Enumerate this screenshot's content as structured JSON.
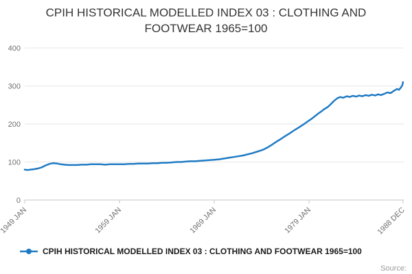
{
  "title": "CPIH HISTORICAL MODELLED INDEX 03 : CLOTHING AND FOOTWEAR 1965=100",
  "legend": {
    "label": "CPIH HISTORICAL MODELLED INDEX 03 : CLOTHING AND FOOTWEAR 1965=100"
  },
  "source_label": "Source:",
  "colors": {
    "line": "#1e7ac4",
    "grid": "#e6e6e6",
    "axis": "#c6c6c6",
    "tick_text": "#6e6e6e"
  },
  "chart_data": {
    "type": "line",
    "title": "CPIH HISTORICAL MODELLED INDEX 03 : CLOTHING AND FOOTWEAR 1965=100",
    "xlabel": "",
    "ylabel": "",
    "x_range": [
      1949,
      1989
    ],
    "y_range": [
      0,
      400
    ],
    "y_ticks": [
      0,
      100,
      200,
      300,
      400
    ],
    "x_tick_labels": [
      "1949 JAN",
      "1959 JAN",
      "1969 JAN",
      "1979 JAN",
      "1988 DEC"
    ],
    "x_tick_positions": [
      1949,
      1959,
      1969,
      1979,
      1988.917
    ],
    "grid": true,
    "legend_position": "bottom",
    "series": [
      {
        "name": "CPIH HISTORICAL MODELLED INDEX 03 : CLOTHING AND FOOTWEAR 1965=100",
        "color": "#1e7ac4",
        "points": [
          [
            1949.0,
            80
          ],
          [
            1949.3,
            79
          ],
          [
            1949.6,
            80
          ],
          [
            1950.0,
            81
          ],
          [
            1950.4,
            83
          ],
          [
            1950.8,
            86
          ],
          [
            1951.2,
            91
          ],
          [
            1951.6,
            95
          ],
          [
            1952.0,
            97
          ],
          [
            1952.4,
            96
          ],
          [
            1952.8,
            94
          ],
          [
            1953.2,
            93
          ],
          [
            1953.6,
            92
          ],
          [
            1954.0,
            92
          ],
          [
            1954.5,
            92
          ],
          [
            1955.0,
            93
          ],
          [
            1955.5,
            93
          ],
          [
            1956.0,
            94
          ],
          [
            1956.5,
            94
          ],
          [
            1957.0,
            94
          ],
          [
            1957.5,
            93
          ],
          [
            1958.0,
            94
          ],
          [
            1958.5,
            94
          ],
          [
            1959.0,
            94
          ],
          [
            1959.5,
            94
          ],
          [
            1960.0,
            95
          ],
          [
            1960.5,
            95
          ],
          [
            1961.0,
            96
          ],
          [
            1961.5,
            96
          ],
          [
            1962.0,
            96
          ],
          [
            1962.5,
            97
          ],
          [
            1963.0,
            97
          ],
          [
            1963.5,
            98
          ],
          [
            1964.0,
            98
          ],
          [
            1964.5,
            99
          ],
          [
            1965.0,
            100
          ],
          [
            1965.5,
            100
          ],
          [
            1966.0,
            101
          ],
          [
            1966.5,
            102
          ],
          [
            1967.0,
            102
          ],
          [
            1967.5,
            103
          ],
          [
            1968.0,
            104
          ],
          [
            1968.5,
            105
          ],
          [
            1969.0,
            106
          ],
          [
            1969.5,
            107
          ],
          [
            1970.0,
            109
          ],
          [
            1970.5,
            111
          ],
          [
            1971.0,
            113
          ],
          [
            1971.5,
            115
          ],
          [
            1972.0,
            117
          ],
          [
            1972.5,
            120
          ],
          [
            1973.0,
            123
          ],
          [
            1973.5,
            127
          ],
          [
            1974.0,
            131
          ],
          [
            1974.3,
            134
          ],
          [
            1974.6,
            138
          ],
          [
            1975.0,
            144
          ],
          [
            1975.3,
            149
          ],
          [
            1975.6,
            154
          ],
          [
            1976.0,
            160
          ],
          [
            1976.3,
            165
          ],
          [
            1976.6,
            170
          ],
          [
            1977.0,
            176
          ],
          [
            1977.3,
            181
          ],
          [
            1977.6,
            186
          ],
          [
            1978.0,
            192
          ],
          [
            1978.3,
            197
          ],
          [
            1978.6,
            202
          ],
          [
            1979.0,
            209
          ],
          [
            1979.3,
            214
          ],
          [
            1979.6,
            220
          ],
          [
            1980.0,
            228
          ],
          [
            1980.3,
            233
          ],
          [
            1980.6,
            239
          ],
          [
            1981.0,
            245
          ],
          [
            1981.3,
            252
          ],
          [
            1981.6,
            260
          ],
          [
            1982.0,
            268
          ],
          [
            1982.3,
            271
          ],
          [
            1982.6,
            269
          ],
          [
            1983.0,
            273
          ],
          [
            1983.3,
            271
          ],
          [
            1983.6,
            274
          ],
          [
            1984.0,
            272
          ],
          [
            1984.3,
            275
          ],
          [
            1984.6,
            273
          ],
          [
            1985.0,
            276
          ],
          [
            1985.3,
            274
          ],
          [
            1985.6,
            277
          ],
          [
            1986.0,
            275
          ],
          [
            1986.3,
            278
          ],
          [
            1986.6,
            276
          ],
          [
            1987.0,
            280
          ],
          [
            1987.3,
            283
          ],
          [
            1987.6,
            281
          ],
          [
            1988.0,
            288
          ],
          [
            1988.3,
            292
          ],
          [
            1988.5,
            290
          ],
          [
            1988.7,
            296
          ],
          [
            1988.85,
            302
          ],
          [
            1988.92,
            310
          ]
        ]
      }
    ]
  }
}
